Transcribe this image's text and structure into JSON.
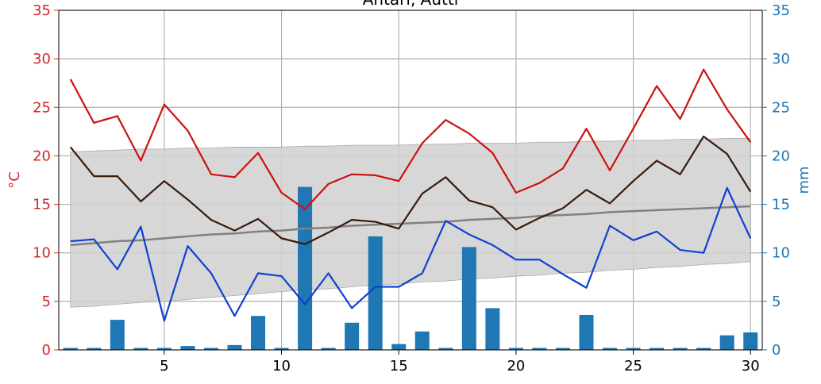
{
  "chart_data": {
    "type": "line",
    "title": "Ähtäri, Autti",
    "xlabel": "",
    "ylabel_left": "°C",
    "ylabel_right": "mm",
    "xlim": [
      0.5,
      30.5
    ],
    "ylim": [
      0,
      35
    ],
    "x_ticks": [
      5,
      10,
      15,
      20,
      25,
      30
    ],
    "y_ticks": [
      0,
      5,
      10,
      15,
      20,
      25,
      30,
      35
    ],
    "grid": true,
    "colors": {
      "left_axis": "#d62728",
      "right_axis": "#1f77b4",
      "max_temp": "#cc1111",
      "mean_temp": "#3a1a0a",
      "min_temp": "#1040d0",
      "normal_mean": "#808080",
      "normal_band": "#d0d0d0",
      "precip": "#1f77b4"
    },
    "x": [
      1,
      2,
      3,
      4,
      5,
      6,
      7,
      8,
      9,
      10,
      11,
      12,
      13,
      14,
      15,
      16,
      17,
      18,
      19,
      20,
      21,
      22,
      23,
      24,
      25,
      26,
      27,
      28,
      29,
      30
    ],
    "series": [
      {
        "values": [
          27.9,
          23.4,
          24.1,
          19.5,
          25.3,
          22.6,
          18.1,
          17.8,
          20.3,
          16.2,
          14.5,
          17.1,
          18.1,
          18.0,
          17.4,
          21.3,
          23.7,
          22.3,
          20.3,
          16.2,
          17.2,
          18.7,
          22.8,
          18.5,
          22.8,
          27.2,
          23.8,
          28.9,
          24.8,
          21.4
        ]
      },
      {
        "values": [
          20.9,
          17.9,
          17.9,
          15.3,
          17.4,
          15.5,
          13.4,
          12.3,
          13.5,
          11.5,
          10.9,
          12.1,
          13.4,
          13.2,
          12.5,
          16.1,
          17.8,
          15.4,
          14.7,
          12.4,
          13.6,
          14.6,
          16.5,
          15.1,
          17.4,
          19.5,
          18.1,
          22.0,
          20.2,
          16.3
        ]
      },
      {
        "values": [
          11.2,
          11.4,
          8.3,
          12.7,
          3.0,
          10.7,
          7.9,
          3.5,
          7.9,
          7.6,
          4.7,
          7.9,
          4.3,
          6.5,
          6.5,
          7.9,
          13.3,
          11.9,
          10.8,
          9.3,
          9.3,
          7.8,
          6.4,
          12.8,
          11.3,
          12.2,
          10.3,
          10.0,
          16.7,
          11.5
        ]
      },
      {
        "values": [
          10.8,
          11.0,
          11.2,
          11.3,
          11.5,
          11.7,
          11.9,
          12.0,
          12.2,
          12.3,
          12.5,
          12.6,
          12.8,
          12.9,
          13.0,
          13.1,
          13.2,
          13.4,
          13.5,
          13.6,
          13.8,
          13.9,
          14.0,
          14.2,
          14.3,
          14.4,
          14.5,
          14.6,
          14.7,
          14.8
        ]
      },
      {
        "values": [
          0.2,
          0.2,
          3.1,
          0.2,
          0.2,
          0.4,
          0.2,
          0.5,
          3.5,
          0.2,
          16.8,
          0.2,
          2.8,
          11.7,
          0.6,
          1.9,
          0.2,
          10.6,
          4.3,
          0.2,
          0.2,
          0.2,
          3.6,
          0.2,
          0.2,
          0.2,
          0.2,
          0.2,
          1.5,
          1.8
        ]
      }
    ],
    "normal_band_upper": [
      20.4,
      20.5,
      20.6,
      20.7,
      20.7,
      20.8,
      20.8,
      20.9,
      20.9,
      20.9,
      21.0,
      21.0,
      21.1,
      21.1,
      21.1,
      21.2,
      21.2,
      21.3,
      21.3,
      21.3,
      21.4,
      21.4,
      21.5,
      21.5,
      21.6,
      21.6,
      21.7,
      21.7,
      21.8,
      21.8
    ],
    "normal_band_lower": [
      4.4,
      4.5,
      4.7,
      4.9,
      5.0,
      5.2,
      5.4,
      5.6,
      5.8,
      6.0,
      6.2,
      6.3,
      6.5,
      6.7,
      6.8,
      7.0,
      7.1,
      7.3,
      7.4,
      7.6,
      7.7,
      7.9,
      8.0,
      8.2,
      8.3,
      8.5,
      8.6,
      8.8,
      8.9,
      9.1
    ]
  }
}
